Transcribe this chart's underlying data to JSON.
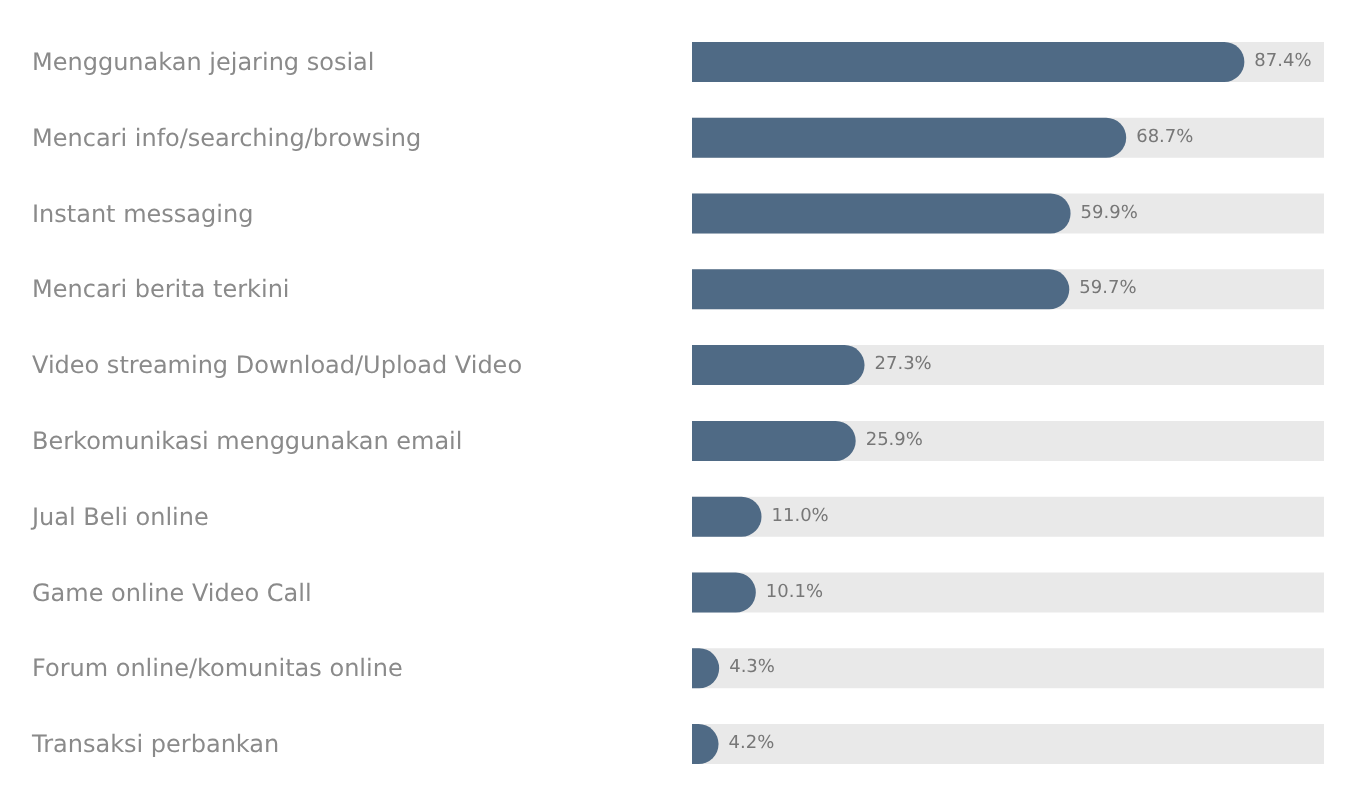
{
  "chart_data": {
    "type": "bar",
    "orientation": "horizontal",
    "categories": [
      "Menggunakan jejaring sosial",
      "Mencari info/searching/browsing",
      "Instant messaging",
      "Mencari berita terkini",
      "Video streaming Download/Upload Video",
      "Berkomunikasi menggunakan email",
      "Jual Beli online",
      "Game online Video Call",
      "Forum online/komunitas online",
      "Transaksi perbankan"
    ],
    "values": [
      87.4,
      68.7,
      59.9,
      59.7,
      27.3,
      25.9,
      11.0,
      10.1,
      4.3,
      4.2
    ],
    "value_labels": [
      "87.4%",
      "68.7%",
      "59.9%",
      "59.7%",
      "27.3%",
      "25.9%",
      "11.0%",
      "10.1%",
      "4.3%",
      "4.2%"
    ],
    "color": "#4f6a85",
    "xlim": [
      0,
      100
    ],
    "tick_labels": "y",
    "grid": false
  }
}
